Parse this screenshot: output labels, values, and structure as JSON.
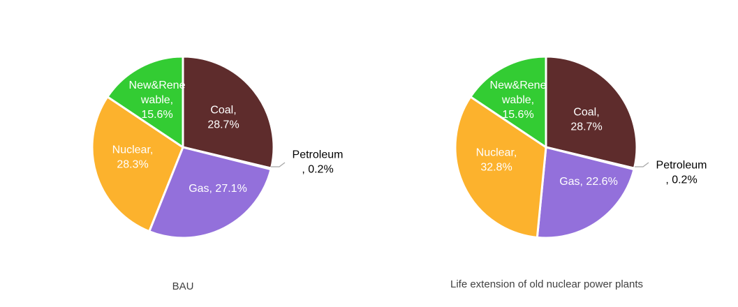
{
  "chart_data": [
    {
      "type": "pie",
      "title": "BAU",
      "slices": [
        {
          "label": "Coal",
          "value": 28.7,
          "display": "28.7%",
          "color": "#5e2c2c",
          "label_color": "#ffffff"
        },
        {
          "label": "Petroleum",
          "value": 0.2,
          "display": "0.2%",
          "color": "#a5a5a5",
          "label_color": "#000000"
        },
        {
          "label": "Gas",
          "value": 27.1,
          "display": "27.1%",
          "color": "#9370db",
          "label_color": "#ffffff"
        },
        {
          "label": "Nuclear",
          "value": 28.3,
          "display": "28.3%",
          "color": "#fcb22d",
          "label_color": "#ffffff"
        },
        {
          "label": "New&Renewable",
          "value": 15.6,
          "display": "15.6%",
          "color": "#33cc33",
          "label_color": "#ffffff"
        }
      ],
      "label_lines": {
        "Coal": [
          "Coal,",
          "28.7%"
        ],
        "Petroleum": [
          "Petroleum",
          ", 0.2%"
        ],
        "Gas": [
          "Gas, 27.1%"
        ],
        "Nuclear": [
          "Nuclear,",
          "28.3%"
        ],
        "New&Renewable": [
          "New&Rene",
          "wable,",
          "15.6%"
        ]
      }
    },
    {
      "type": "pie",
      "title": "Life extension of old nuclear power plants",
      "slices": [
        {
          "label": "Coal",
          "value": 28.7,
          "display": "28.7%",
          "color": "#5e2c2c",
          "label_color": "#ffffff"
        },
        {
          "label": "Petroleum",
          "value": 0.2,
          "display": "0.2%",
          "color": "#a5a5a5",
          "label_color": "#000000"
        },
        {
          "label": "Gas",
          "value": 22.6,
          "display": "22.6%",
          "color": "#9370db",
          "label_color": "#ffffff"
        },
        {
          "label": "Nuclear",
          "value": 32.8,
          "display": "32.8%",
          "color": "#fcb22d",
          "label_color": "#ffffff"
        },
        {
          "label": "New&Renewable",
          "value": 15.6,
          "display": "15.6%",
          "color": "#33cc33",
          "label_color": "#ffffff"
        }
      ],
      "label_lines": {
        "Coal": [
          "Coal,",
          "28.7%"
        ],
        "Petroleum": [
          "Petroleum",
          ", 0.2%"
        ],
        "Gas": [
          "Gas, 22.6%"
        ],
        "Nuclear": [
          "Nuclear,",
          "32.8%"
        ],
        "New&Renewable": [
          "New&Rene",
          "wable,",
          "15.6%"
        ]
      }
    }
  ]
}
